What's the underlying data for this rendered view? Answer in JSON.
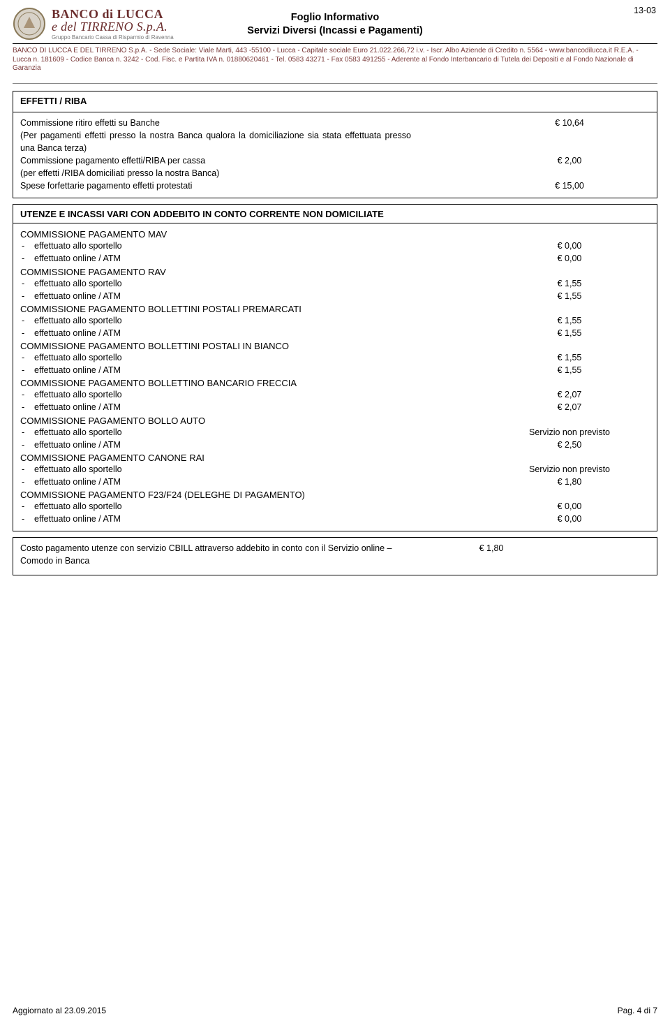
{
  "page_code": "13-03",
  "header": {
    "brand_line1": "BANCO di LUCCA",
    "brand_line2": "e del TIRRENO S.p.A.",
    "brand_line3": "Gruppo Bancario Cassa di Risparmio di Ravenna",
    "title_line1": "Foglio Informativo",
    "title_line2": "Servizi Diversi (Incassi e Pagamenti)",
    "legal": "BANCO DI LUCCA E DEL TIRRENO S.p.A. - Sede Sociale: Viale Marti, 443 -55100 - Lucca - Capitale sociale Euro 21.022.266,72 i.v. - Iscr. Albo Aziende di Credito n. 5564 - www.bancodilucca.it R.E.A. - Lucca n. 181609 - Codice Banca n. 3242 - Cod. Fisc. e Partita IVA n. 01880620461 - Tel. 0583 43271 - Fax 0583 491255 - Aderente al Fondo Interbancario di Tutela dei Depositi e al Fondo Nazionale di Garanzia"
  },
  "box1": {
    "title": "EFFETTI / RIBA",
    "rows": [
      {
        "label": "Commissione ritiro effetti su Banche",
        "val": "€ 10,64"
      },
      {
        "label": "(Per pagamenti effetti presso la nostra Banca qualora la domiciliazione sia stata effettuata presso una Banca terza)",
        "val": ""
      },
      {
        "label": "Commissione pagamento effetti/RIBA per cassa",
        "val": "€ 2,00"
      },
      {
        "label": "(per effetti /RIBA domiciliati presso la nostra Banca)",
        "val": ""
      },
      {
        "label": "Spese forfettarie pagamento effetti protestati",
        "val": "€ 15,00"
      }
    ]
  },
  "box2": {
    "title": "UTENZE E INCASSI VARI  CON ADDEBITO IN CONTO CORRENTE NON DOMICILIATE",
    "groups": [
      {
        "heading": "COMMISSIONE PAGAMENTO MAV",
        "items": [
          {
            "label": "effettuato allo sportello",
            "val": "€ 0,00"
          },
          {
            "label": "effettuato online / ATM",
            "val": "€ 0,00"
          }
        ]
      },
      {
        "heading": "COMMISSIONE PAGAMENTO RAV",
        "items": [
          {
            "label": "effettuato allo sportello",
            "val": "€ 1,55"
          },
          {
            "label": "effettuato online / ATM",
            "val": "€ 1,55"
          }
        ]
      },
      {
        "heading": "COMMISSIONE PAGAMENTO BOLLETTINI POSTALI PREMARCATI",
        "items": [
          {
            "label": "effettuato allo sportello",
            "val": "€ 1,55"
          },
          {
            "label": "effettuato online / ATM",
            "val": "€ 1,55"
          }
        ]
      },
      {
        "heading": "COMMISSIONE PAGAMENTO BOLLETTINI POSTALI IN BIANCO",
        "items": [
          {
            "label": "effettuato allo sportello",
            "val": "€ 1,55"
          },
          {
            "label": "effettuato online / ATM",
            "val": "€ 1,55"
          }
        ]
      },
      {
        "heading": "COMMISSIONE PAGAMENTO BOLLETTINO BANCARIO FRECCIA",
        "items": [
          {
            "label": "effettuato allo sportello",
            "val": "€ 2,07"
          },
          {
            "label": "effettuato online / ATM",
            "val": "€ 2,07"
          }
        ]
      },
      {
        "heading": "COMMISSIONE PAGAMENTO BOLLO AUTO",
        "items": [
          {
            "label": "effettuato allo sportello",
            "val": "Servizio non previsto"
          },
          {
            "label": "effettuato online / ATM",
            "val": "€ 2,50"
          }
        ]
      },
      {
        "heading": "COMMISSIONE PAGAMENTO CANONE RAI",
        "items": [
          {
            "label": "effettuato allo sportello",
            "val": "Servizio non previsto"
          },
          {
            "label": "effettuato online / ATM",
            "val": "€ 1,80"
          }
        ]
      },
      {
        "heading": "COMMISSIONE PAGAMENTO F23/F24 (DELEGHE DI PAGAMENTO)",
        "items": [
          {
            "label": "effettuato allo sportello",
            "val": "€ 0,00"
          },
          {
            "label": "effettuato online / ATM",
            "val": "€ 0,00"
          }
        ]
      }
    ]
  },
  "box3": {
    "label": "Costo pagamento utenze con servizio CBILL attraverso addebito in conto con il Servizio online – Comodo in Banca",
    "val": "€ 1,80"
  },
  "footer": {
    "left": "Aggiornato al 23.09.2015",
    "right": "Pag. 4 di 7"
  }
}
